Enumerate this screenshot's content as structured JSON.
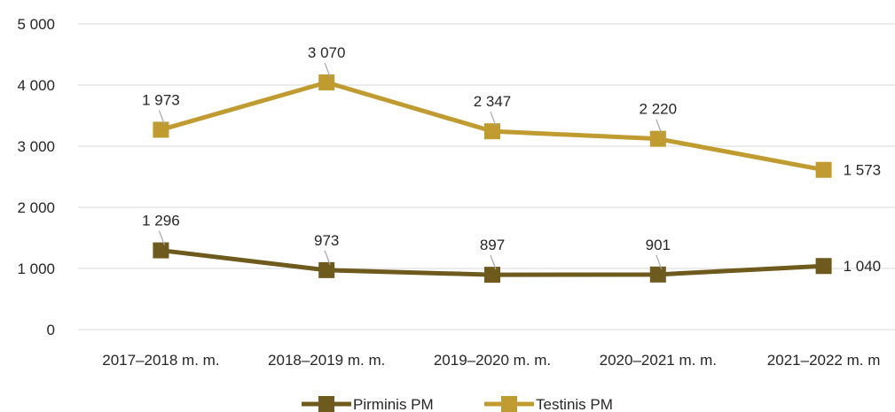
{
  "chart_data": {
    "type": "line",
    "categories": [
      "2017–2018 m. m.",
      "2018–2019 m. m.",
      "2019–2020 m. m.",
      "2020–2021 m. m.",
      "2021–2022 m. m"
    ],
    "ylim": [
      0,
      5000
    ],
    "yticks": [
      0,
      1000,
      2000,
      3000,
      4000,
      5000
    ],
    "ytick_labels": [
      "0",
      "1 000",
      "2 000",
      "3 000",
      "4 000",
      "5 000"
    ],
    "grid": true,
    "legend_position": "bottom",
    "series": [
      {
        "name": "Pirminis PM",
        "values": [
          1296,
          973,
          897,
          901,
          1040
        ],
        "labels": [
          "1 296",
          "973",
          "897",
          "901",
          "1 040"
        ],
        "color": "#6f5a1e"
      },
      {
        "name": "Testinis PM",
        "values": [
          3269,
          4043,
          3244,
          3121,
          2613
        ],
        "labels": [
          "1 973",
          "3 070",
          "2 347",
          "2 220",
          "1 573"
        ],
        "color": "#bf9b30"
      }
    ]
  }
}
